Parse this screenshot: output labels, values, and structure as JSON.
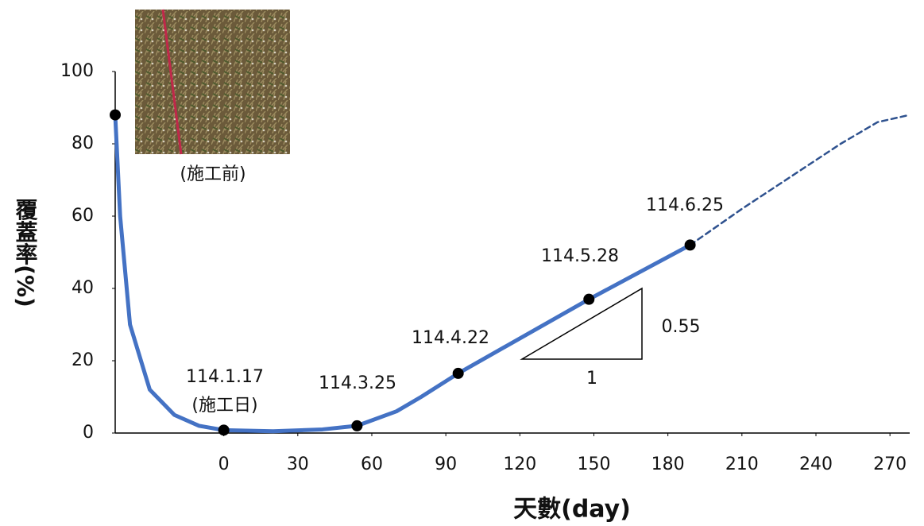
{
  "chart_data": {
    "type": "line",
    "xlabel": "天數(day)",
    "ylabel": "覆蓋率(%)",
    "xlim": [
      -44,
      278
    ],
    "ylim": [
      0,
      100
    ],
    "xticks": [
      0,
      30,
      60,
      90,
      120,
      150,
      180,
      210,
      240,
      270
    ],
    "yticks": [
      0,
      20,
      40,
      60,
      80,
      100
    ],
    "series": [
      {
        "color": "#4472c4",
        "style": "solid",
        "x": [
          -44,
          -42,
          -38,
          -30,
          -20,
          -10,
          0,
          20,
          40,
          54,
          70,
          80,
          95,
          148,
          189
        ],
        "values": [
          88,
          60,
          30,
          12,
          5,
          2,
          0.8,
          0.5,
          1,
          2,
          6,
          10,
          16.5,
          37,
          52
        ]
      },
      {
        "color": "#2f528f",
        "style": "dashed",
        "x": [
          189,
          210,
          230,
          250,
          265,
          278
        ],
        "values": [
          52,
          62,
          71,
          80,
          86,
          88
        ]
      },
      {
        "color": "#000000",
        "style": "markers",
        "x": [
          -44,
          0,
          54,
          95,
          148,
          189
        ],
        "values": [
          88,
          0.8,
          2,
          16.5,
          37,
          52
        ]
      }
    ],
    "annotations": [
      "114.1.17",
      "(施工日)",
      "114.3.25",
      "114.4.22",
      "114.5.28",
      "114.6.25",
      "0.55",
      "1",
      "(施工前)"
    ]
  }
}
